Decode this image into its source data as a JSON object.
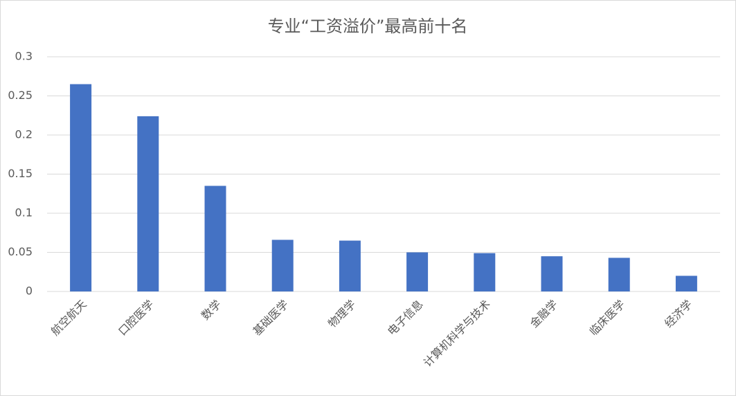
{
  "chart_data": {
    "type": "bar",
    "title": "专业“工资溢价”最高前十名",
    "categories": [
      "航空航天",
      "口腔医学",
      "数学",
      "基础医学",
      "物理学",
      "电子信息",
      "计算机科学与技术",
      "金融学",
      "临床医学",
      "经济学"
    ],
    "values": [
      0.265,
      0.224,
      0.135,
      0.066,
      0.065,
      0.05,
      0.049,
      0.045,
      0.043,
      0.02
    ],
    "color": "#4472c4",
    "ylim": [
      0,
      0.3
    ],
    "yticks": [
      0,
      0.05,
      0.1,
      0.15,
      0.2,
      0.25,
      0.3
    ],
    "grid": true
  }
}
